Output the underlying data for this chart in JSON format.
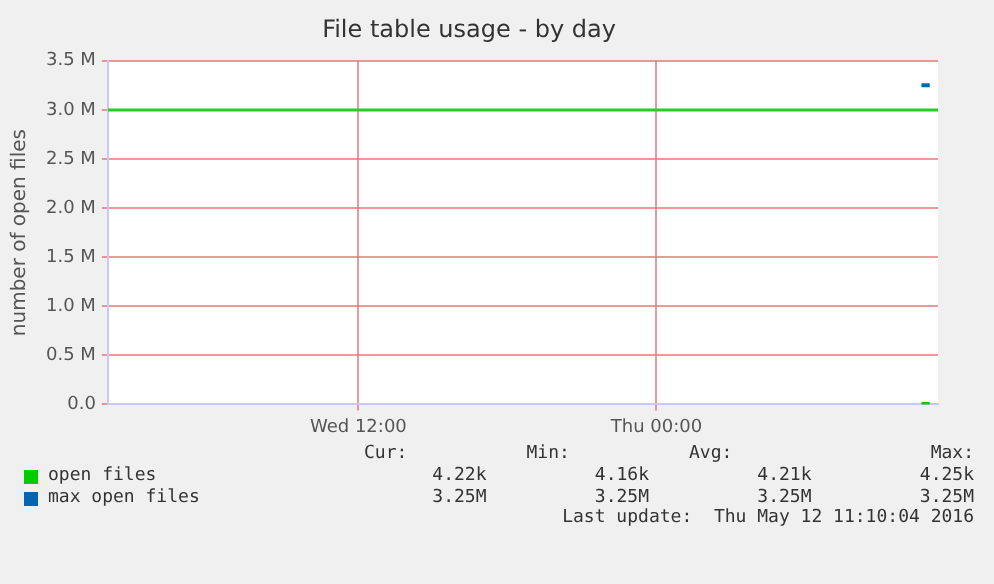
{
  "chart_data": {
    "type": "line",
    "title": "File table usage - by day",
    "ylabel": "number of open files",
    "xlim": [
      "2016-05-11T01:55",
      "2016-05-12T11:20"
    ],
    "xticks": [
      {
        "value": "2016-05-11T12:00",
        "label": "Wed 12:00"
      },
      {
        "value": "2016-05-12T00:00",
        "label": "Thu 00:00"
      }
    ],
    "ylim": [
      0,
      3500000
    ],
    "yticks": [
      {
        "value": 0,
        "label": "0.0"
      },
      {
        "value": 500000,
        "label": "0.5 M"
      },
      {
        "value": 1000000,
        "label": "1.0 M"
      },
      {
        "value": 1500000,
        "label": "1.5 M"
      },
      {
        "value": 2000000,
        "label": "2.0 M"
      },
      {
        "value": 2500000,
        "label": "2.5 M"
      },
      {
        "value": 3000000,
        "label": "3.0 M"
      },
      {
        "value": 3500000,
        "label": "3.5 M"
      }
    ],
    "grid": true,
    "legend": "bottom",
    "marker": "none",
    "series": [
      {
        "name": "open files",
        "color": "#00cc00",
        "x": [
          "2016-05-12T10:40",
          "2016-05-12T11:00"
        ],
        "values": [
          4000,
          4000
        ]
      },
      {
        "name": "max open files",
        "color": "#0066b3",
        "x": [
          "2016-05-12T10:40",
          "2016-05-12T11:00"
        ],
        "values": [
          3250000,
          3250000
        ]
      }
    ],
    "ref_lines": [
      {
        "axis": "y",
        "value": 3000000,
        "color": "#22d022"
      }
    ],
    "annotations": [
      "Cur:",
      "Min:",
      "Avg:",
      "Max:",
      "4.22k",
      "4.16k",
      "4.21k",
      "4.25k",
      "3.25M",
      "3.25M",
      "3.25M",
      "3.25M",
      "Last update:  Thu May 12 11:10:04 2016"
    ]
  }
}
